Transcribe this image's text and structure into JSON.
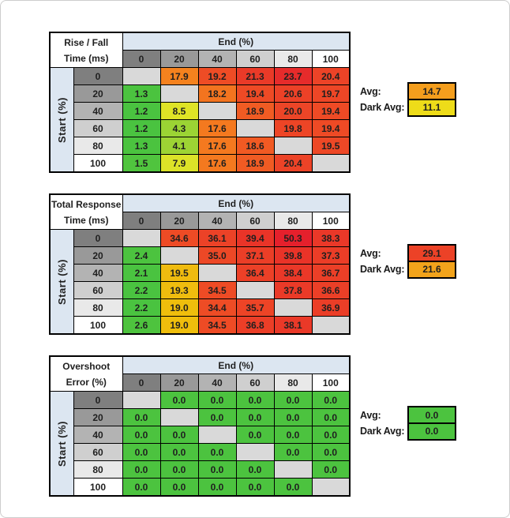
{
  "shared": {
    "end_label": "End (%)",
    "start_label": "Start (%)",
    "avg_label": "Avg:",
    "dark_avg_label": "Dark Avg:",
    "col_headers": [
      "0",
      "20",
      "40",
      "60",
      "80",
      "100"
    ],
    "row_headers": [
      "0",
      "20",
      "40",
      "60",
      "80",
      "100"
    ],
    "header_grays": [
      "#7F7F7F",
      "#999999",
      "#B3B3B3",
      "#CFCFCF",
      "#E9E9E9",
      "#FFFFFF"
    ],
    "band_color": "#DCE6F1",
    "blank_color": "#D9D9D9"
  },
  "tables": [
    {
      "id": "rise-fall",
      "title_line1": "Rise / Fall",
      "title_line2": "Time (ms)",
      "cells": [
        [
          null,
          {
            "v": "17.9",
            "bg": "#F5821E"
          },
          {
            "v": "19.2",
            "bg": "#EE4C25"
          },
          {
            "v": "21.3",
            "bg": "#EA3A28"
          },
          {
            "v": "23.7",
            "bg": "#E62B2B"
          },
          {
            "v": "20.4",
            "bg": "#EC4327"
          }
        ],
        [
          {
            "v": "1.3",
            "bg": "#4BC33F"
          },
          null,
          {
            "v": "18.2",
            "bg": "#F3741F"
          },
          {
            "v": "19.4",
            "bg": "#EE4A25"
          },
          {
            "v": "20.6",
            "bg": "#EC4127"
          },
          {
            "v": "19.7",
            "bg": "#ED4626"
          }
        ],
        [
          {
            "v": "1.2",
            "bg": "#4AC340"
          },
          {
            "v": "8.5",
            "bg": "#DFE426"
          },
          null,
          {
            "v": "18.9",
            "bg": "#F05B23"
          },
          {
            "v": "20.0",
            "bg": "#EC4527"
          },
          {
            "v": "19.4",
            "bg": "#EE4A25"
          }
        ],
        [
          {
            "v": "1.2",
            "bg": "#4AC340"
          },
          {
            "v": "4.3",
            "bg": "#9BD434"
          },
          {
            "v": "17.6",
            "bg": "#F4791F"
          },
          null,
          {
            "v": "19.8",
            "bg": "#ED4526"
          },
          {
            "v": "19.4",
            "bg": "#EE4A25"
          }
        ],
        [
          {
            "v": "1.3",
            "bg": "#4BC33F"
          },
          {
            "v": "4.1",
            "bg": "#9DD434"
          },
          {
            "v": "17.6",
            "bg": "#F4791F"
          },
          {
            "v": "18.6",
            "bg": "#F15A23"
          },
          null,
          {
            "v": "19.5",
            "bg": "#ED4826"
          }
        ],
        [
          {
            "v": "1.5",
            "bg": "#50C43E"
          },
          {
            "v": "7.9",
            "bg": "#DCE328"
          },
          {
            "v": "17.6",
            "bg": "#F4791F"
          },
          {
            "v": "18.9",
            "bg": "#F05B23"
          },
          {
            "v": "20.4",
            "bg": "#EC4327"
          },
          null
        ]
      ],
      "avg": {
        "v": "14.7",
        "bg": "#F49E1D"
      },
      "dark_avg": {
        "v": "11.1",
        "bg": "#EEDC19"
      }
    },
    {
      "id": "total-response",
      "title_line1": "Total Response",
      "title_line2": "Time (ms)",
      "cells": [
        [
          null,
          {
            "v": "34.6",
            "bg": "#EE4B25"
          },
          {
            "v": "36.1",
            "bg": "#EC4227"
          },
          {
            "v": "39.4",
            "bg": "#E93428"
          },
          {
            "v": "50.3",
            "bg": "#E5202C"
          },
          {
            "v": "38.3",
            "bg": "#EA3828"
          }
        ],
        [
          {
            "v": "2.4",
            "bg": "#4CC33F"
          },
          null,
          {
            "v": "35.0",
            "bg": "#ED4826"
          },
          {
            "v": "37.1",
            "bg": "#EB3E27"
          },
          {
            "v": "39.8",
            "bg": "#E93328"
          },
          {
            "v": "37.3",
            "bg": "#EB3D27"
          }
        ],
        [
          {
            "v": "2.1",
            "bg": "#4AC340"
          },
          {
            "v": "19.5",
            "bg": "#EFBB0F"
          },
          null,
          {
            "v": "36.4",
            "bg": "#EC4027"
          },
          {
            "v": "38.4",
            "bg": "#EA3828"
          },
          {
            "v": "36.7",
            "bg": "#EB3F27"
          }
        ],
        [
          {
            "v": "2.2",
            "bg": "#4AC340"
          },
          {
            "v": "19.3",
            "bg": "#EFBC0E"
          },
          {
            "v": "34.5",
            "bg": "#EE4B25"
          },
          null,
          {
            "v": "37.8",
            "bg": "#EA3A28"
          },
          {
            "v": "36.6",
            "bg": "#EB3F27"
          }
        ],
        [
          {
            "v": "2.2",
            "bg": "#4AC340"
          },
          {
            "v": "19.0",
            "bg": "#EFBE0C"
          },
          {
            "v": "34.4",
            "bg": "#EE4C25"
          },
          {
            "v": "35.7",
            "bg": "#ED4426"
          },
          null,
          {
            "v": "36.9",
            "bg": "#EB3E27"
          }
        ],
        [
          {
            "v": "2.6",
            "bg": "#4EC33E"
          },
          {
            "v": "19.0",
            "bg": "#EFBE0C"
          },
          {
            "v": "34.5",
            "bg": "#EE4B25"
          },
          {
            "v": "36.8",
            "bg": "#EB3E27"
          },
          {
            "v": "38.1",
            "bg": "#EA3928"
          },
          null
        ]
      ],
      "avg": {
        "v": "29.1",
        "bg": "#EC4227"
      },
      "dark_avg": {
        "v": "21.6",
        "bg": "#F2A31B"
      }
    },
    {
      "id": "overshoot",
      "title_line1": "Overshoot",
      "title_line2": "Error (%)",
      "cells": [
        [
          null,
          {
            "v": "0.0",
            "bg": "#4CC33F"
          },
          {
            "v": "0.0",
            "bg": "#4CC33F"
          },
          {
            "v": "0.0",
            "bg": "#4CC33F"
          },
          {
            "v": "0.0",
            "bg": "#4CC33F"
          },
          {
            "v": "0.0",
            "bg": "#4CC33F"
          }
        ],
        [
          {
            "v": "0.0",
            "bg": "#4CC33F"
          },
          null,
          {
            "v": "0.0",
            "bg": "#4CC33F"
          },
          {
            "v": "0.0",
            "bg": "#4CC33F"
          },
          {
            "v": "0.0",
            "bg": "#4CC33F"
          },
          {
            "v": "0.0",
            "bg": "#4CC33F"
          }
        ],
        [
          {
            "v": "0.0",
            "bg": "#4CC33F"
          },
          {
            "v": "0.0",
            "bg": "#4CC33F"
          },
          null,
          {
            "v": "0.0",
            "bg": "#4CC33F"
          },
          {
            "v": "0.0",
            "bg": "#4CC33F"
          },
          {
            "v": "0.0",
            "bg": "#4CC33F"
          }
        ],
        [
          {
            "v": "0.0",
            "bg": "#4CC33F"
          },
          {
            "v": "0.0",
            "bg": "#4CC33F"
          },
          {
            "v": "0.0",
            "bg": "#4CC33F"
          },
          null,
          {
            "v": "0.0",
            "bg": "#4CC33F"
          },
          {
            "v": "0.0",
            "bg": "#4CC33F"
          }
        ],
        [
          {
            "v": "0.0",
            "bg": "#4CC33F"
          },
          {
            "v": "0.0",
            "bg": "#4CC33F"
          },
          {
            "v": "0.0",
            "bg": "#4CC33F"
          },
          {
            "v": "0.0",
            "bg": "#4CC33F"
          },
          null,
          {
            "v": "0.0",
            "bg": "#4CC33F"
          }
        ],
        [
          {
            "v": "0.0",
            "bg": "#4CC33F"
          },
          {
            "v": "0.0",
            "bg": "#4CC33F"
          },
          {
            "v": "0.0",
            "bg": "#4CC33F"
          },
          {
            "v": "0.0",
            "bg": "#4CC33F"
          },
          {
            "v": "0.0",
            "bg": "#4CC33F"
          },
          null
        ]
      ],
      "avg": {
        "v": "0.0",
        "bg": "#4CC33F"
      },
      "dark_avg": {
        "v": "0.0",
        "bg": "#4CC33F"
      }
    }
  ],
  "chart_data": [
    {
      "type": "heatmap",
      "title": "Rise / Fall Time (ms)",
      "xlabel": "End (%)",
      "ylabel": "Start (%)",
      "x": [
        0,
        20,
        40,
        60,
        80,
        100
      ],
      "y": [
        0,
        20,
        40,
        60,
        80,
        100
      ],
      "values": [
        [
          null,
          17.9,
          19.2,
          21.3,
          23.7,
          20.4
        ],
        [
          1.3,
          null,
          18.2,
          19.4,
          20.6,
          19.7
        ],
        [
          1.2,
          8.5,
          null,
          18.9,
          20.0,
          19.4
        ],
        [
          1.2,
          4.3,
          17.6,
          null,
          19.8,
          19.4
        ],
        [
          1.3,
          4.1,
          17.6,
          18.6,
          null,
          19.5
        ],
        [
          1.5,
          7.9,
          17.6,
          18.9,
          20.4,
          null
        ]
      ],
      "avg": 14.7,
      "dark_avg": 11.1
    },
    {
      "type": "heatmap",
      "title": "Total Response Time (ms)",
      "xlabel": "End (%)",
      "ylabel": "Start (%)",
      "x": [
        0,
        20,
        40,
        60,
        80,
        100
      ],
      "y": [
        0,
        20,
        40,
        60,
        80,
        100
      ],
      "values": [
        [
          null,
          34.6,
          36.1,
          39.4,
          50.3,
          38.3
        ],
        [
          2.4,
          null,
          35.0,
          37.1,
          39.8,
          37.3
        ],
        [
          2.1,
          19.5,
          null,
          36.4,
          38.4,
          36.7
        ],
        [
          2.2,
          19.3,
          34.5,
          null,
          37.8,
          36.6
        ],
        [
          2.2,
          19.0,
          34.4,
          35.7,
          null,
          36.9
        ],
        [
          2.6,
          19.0,
          34.5,
          36.8,
          38.1,
          null
        ]
      ],
      "avg": 29.1,
      "dark_avg": 21.6
    },
    {
      "type": "heatmap",
      "title": "Overshoot Error (%)",
      "xlabel": "End (%)",
      "ylabel": "Start (%)",
      "x": [
        0,
        20,
        40,
        60,
        80,
        100
      ],
      "y": [
        0,
        20,
        40,
        60,
        80,
        100
      ],
      "values": [
        [
          null,
          0.0,
          0.0,
          0.0,
          0.0,
          0.0
        ],
        [
          0.0,
          null,
          0.0,
          0.0,
          0.0,
          0.0
        ],
        [
          0.0,
          0.0,
          null,
          0.0,
          0.0,
          0.0
        ],
        [
          0.0,
          0.0,
          0.0,
          null,
          0.0,
          0.0
        ],
        [
          0.0,
          0.0,
          0.0,
          0.0,
          null,
          0.0
        ],
        [
          0.0,
          0.0,
          0.0,
          0.0,
          0.0,
          null
        ]
      ],
      "avg": 0.0,
      "dark_avg": 0.0
    }
  ]
}
